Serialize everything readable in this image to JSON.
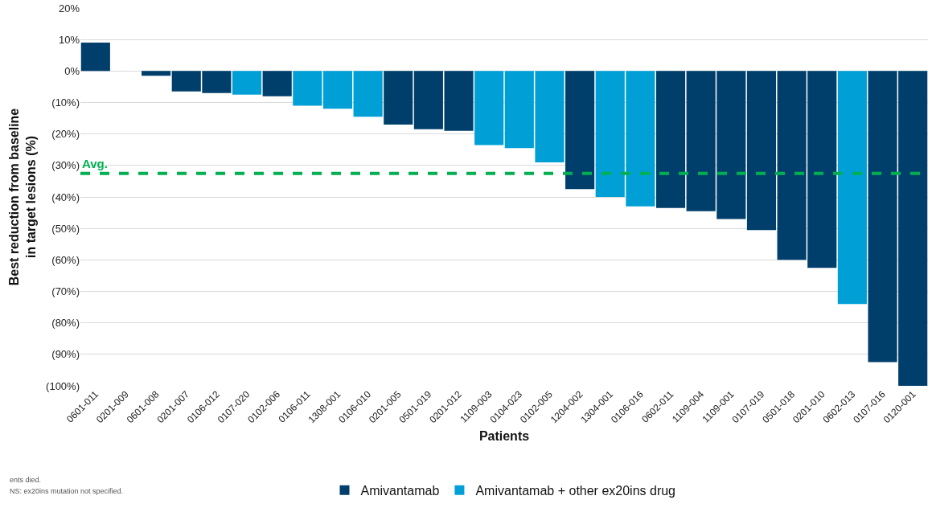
{
  "chart_data": {
    "type": "bar",
    "xlabel": "Patients",
    "ylabel": "Best reduction from baseline\nin target lesions (%)",
    "categories": [
      "0601-011",
      "0201-009",
      "0601-008",
      "0201-007",
      "0106-012",
      "0107-020",
      "0102-006",
      "0106-011",
      "1308-001",
      "0106-010",
      "0201-005",
      "0501-019",
      "0201-012",
      "1109-003",
      "0104-023",
      "0102-005",
      "1204-002",
      "1304-001",
      "0106-016",
      "0602-011",
      "1109-004",
      "1109-001",
      "0107-019",
      "0501-018",
      "0201-010",
      "0602-013",
      "0107-016",
      "0120-001"
    ],
    "series": [
      {
        "name": "Amivantamab",
        "color": "#003f6b",
        "values": [
          9,
          0,
          -1.5,
          -6.5,
          -7,
          null,
          -8,
          null,
          null,
          null,
          -17,
          -18.5,
          -19,
          null,
          null,
          null,
          -37.5,
          null,
          null,
          -43.5,
          -44.5,
          -47,
          -50.5,
          -60,
          -62.5,
          null,
          -92.5,
          -100
        ]
      },
      {
        "name": "Amivantamab + other ex20ins drug",
        "color": "#00a0d6",
        "values": [
          null,
          null,
          null,
          null,
          null,
          -7.5,
          null,
          -11,
          -12,
          -14.5,
          null,
          null,
          null,
          -23.5,
          -24.5,
          -29,
          null,
          -40,
          -43,
          null,
          null,
          null,
          null,
          null,
          null,
          -74,
          null,
          null
        ]
      }
    ],
    "ylim": [
      -100,
      20
    ],
    "yticks": [
      {
        "value": -100,
        "label": "(100%)"
      },
      {
        "value": -90,
        "label": "(90%)"
      },
      {
        "value": -80,
        "label": "(80%)"
      },
      {
        "value": -70,
        "label": "(70%)"
      },
      {
        "value": -60,
        "label": "(60%)"
      },
      {
        "value": -50,
        "label": "(50%)"
      },
      {
        "value": -40,
        "label": "(40%)"
      },
      {
        "value": -30,
        "label": "(30%)"
      },
      {
        "value": -20,
        "label": "(20%)"
      },
      {
        "value": -10,
        "label": "(10%)"
      },
      {
        "value": 0,
        "label": "0%"
      },
      {
        "value": 10,
        "label": "10%"
      },
      {
        "value": 20,
        "label": "20%"
      }
    ],
    "ref_lines": [
      {
        "axis": "y",
        "value": -32.5,
        "label": "Avg.",
        "color": "#00b050",
        "line_style": "dashed"
      }
    ],
    "annotations": [
      "ents died.",
      "NS: ex20ins mutation not specified."
    ],
    "grid": "y",
    "legend": "bottom"
  }
}
